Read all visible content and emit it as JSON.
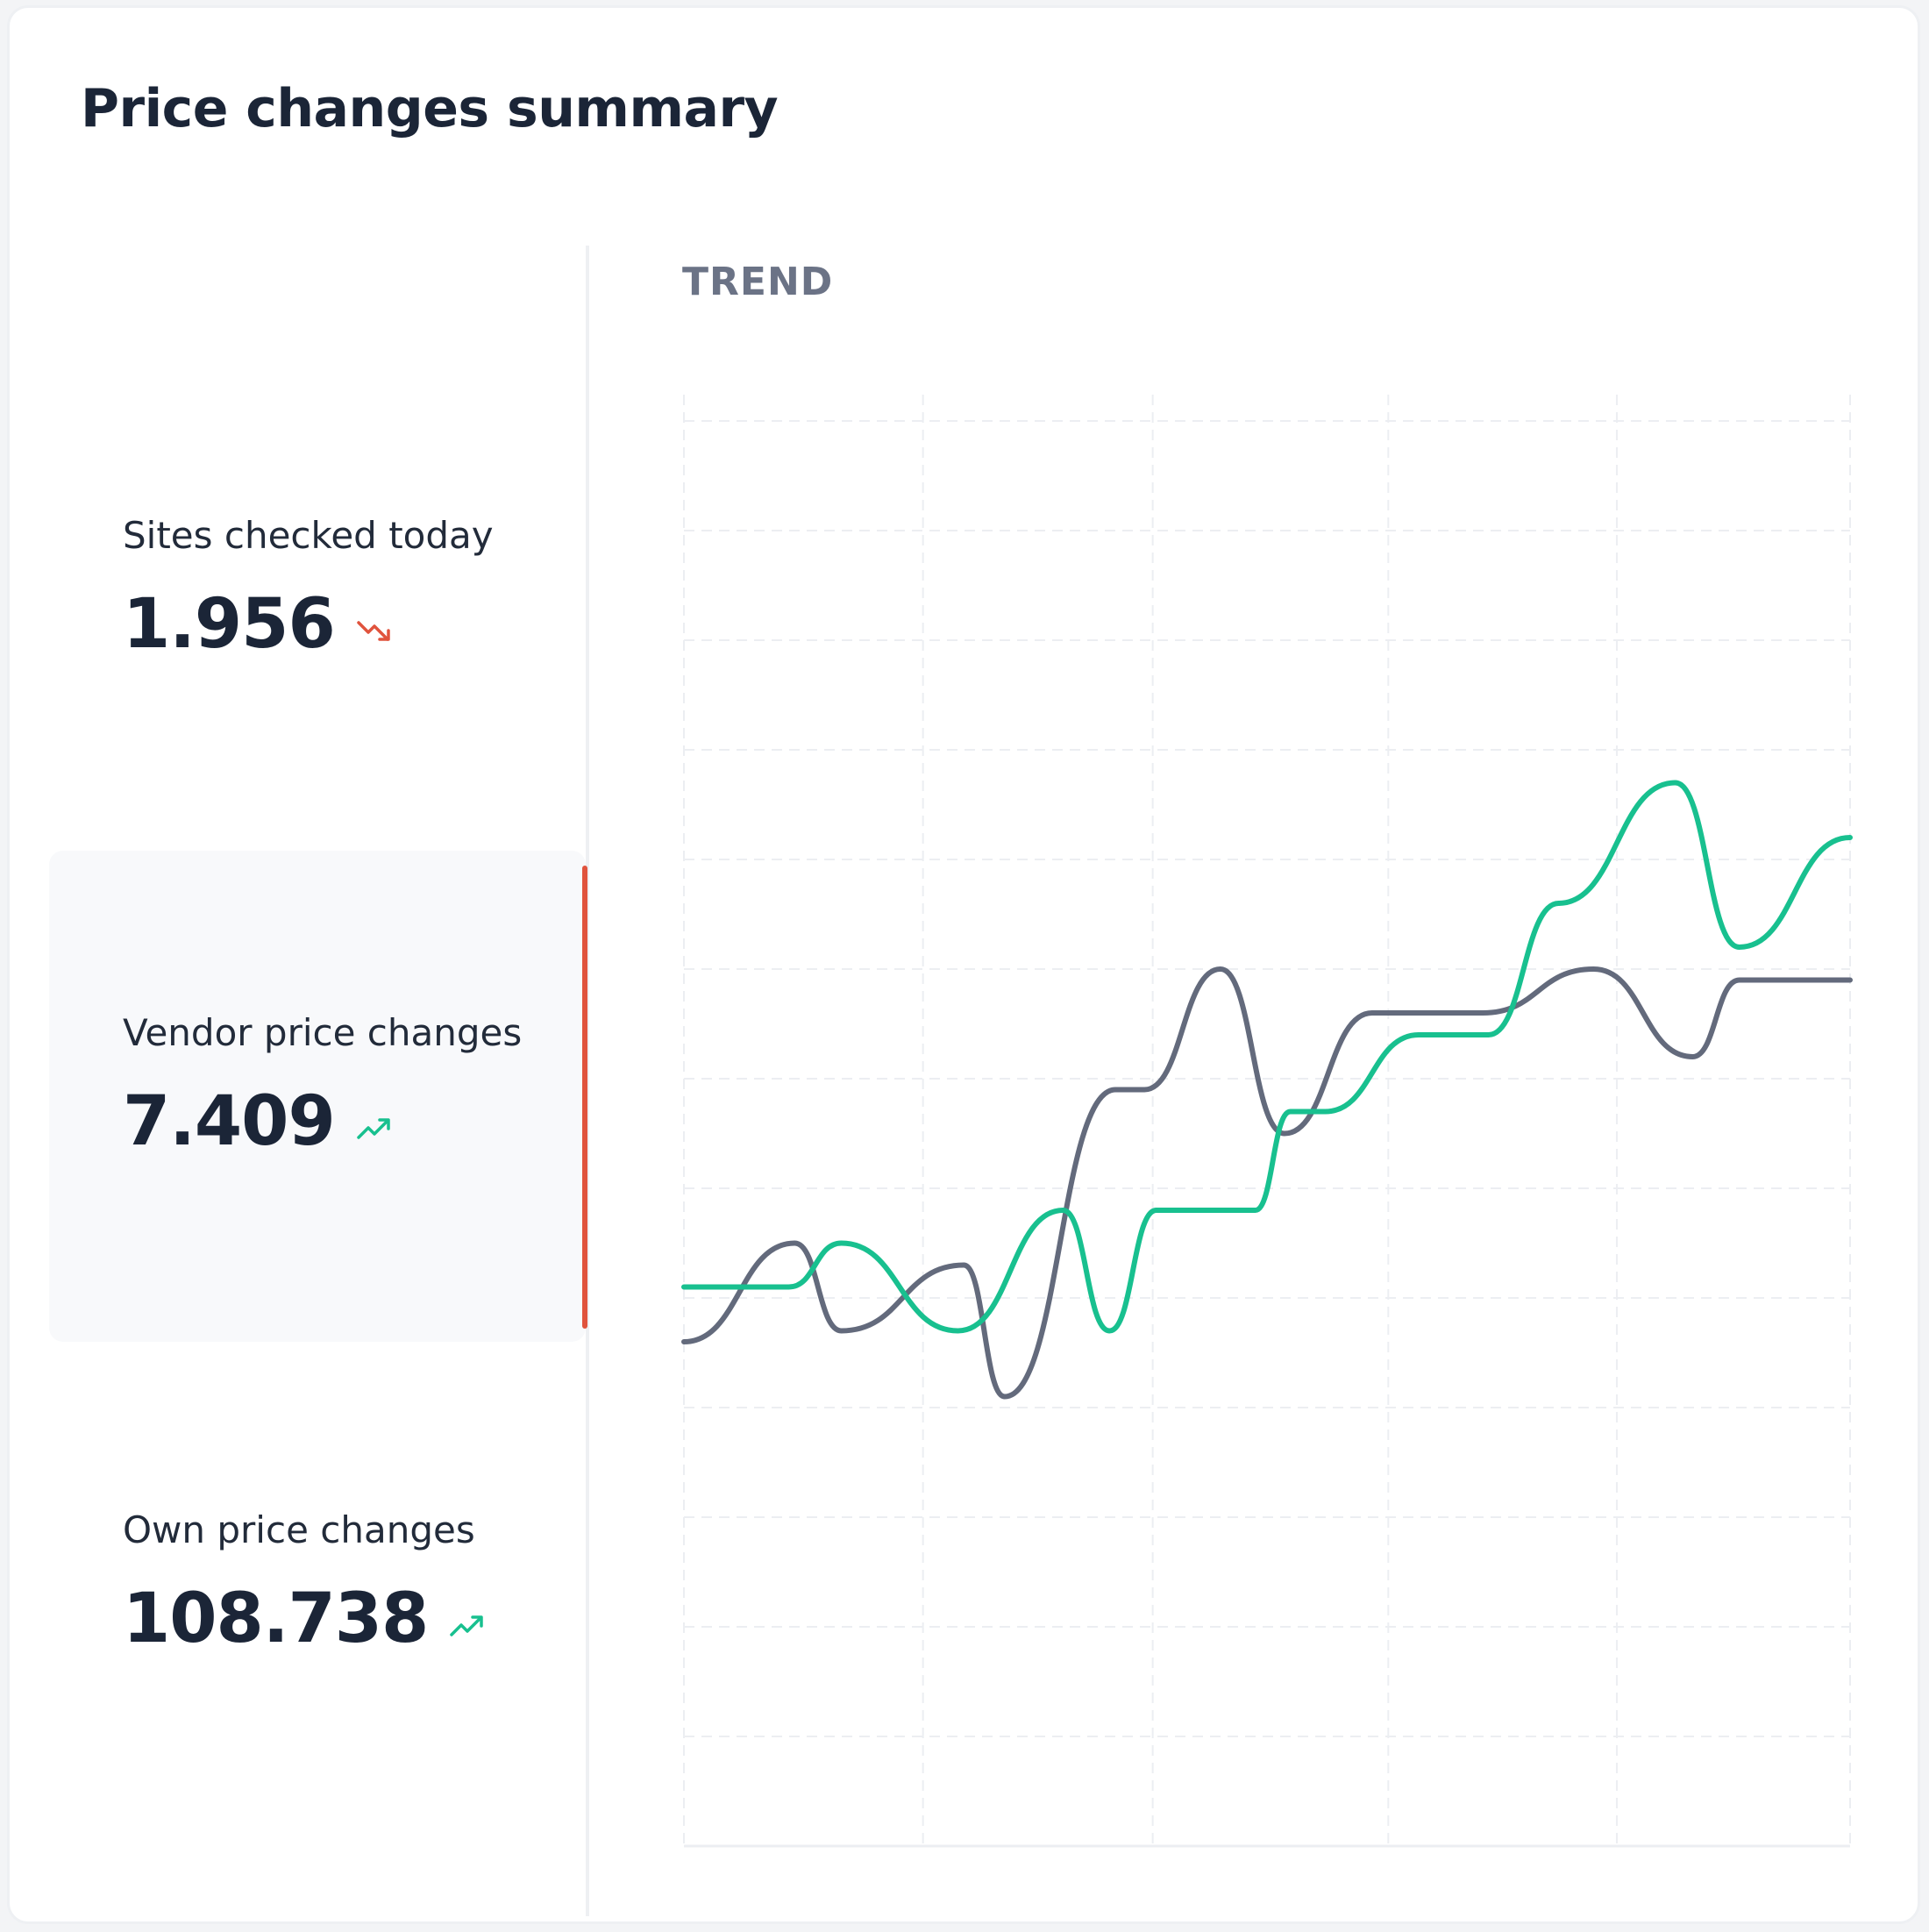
{
  "card": {
    "title": "Price changes summary"
  },
  "stats": [
    {
      "label": "Sites checked today",
      "value": "1.956",
      "trend": "down",
      "icon": "trend-down-icon",
      "color": "#e0533d"
    },
    {
      "label": "Vendor price changes",
      "value": "7.409",
      "trend": "up",
      "icon": "trend-up-icon",
      "color": "#18c08f",
      "active": true
    },
    {
      "label": "Own price changes",
      "value": "108.738",
      "trend": "up",
      "icon": "trend-up-icon",
      "color": "#18c08f"
    }
  ],
  "trend": {
    "label": "TREND"
  },
  "chart_data": {
    "type": "line",
    "ylim": [
      0,
      13
    ],
    "xlim": [
      0,
      20
    ],
    "grid": true,
    "series": [
      {
        "color": "#18c08f",
        "x": [
          0,
          1.8,
          2.7,
          4.7,
          6.5,
          7.3,
          8.1,
          9.8,
          10.4,
          11,
          12.6,
          13.8,
          15,
          17,
          18.1,
          20
        ],
        "values": [
          5.1,
          5.1,
          5.5,
          4.7,
          5.8,
          4.7,
          5.8,
          5.8,
          6.7,
          6.7,
          7.4,
          7.4,
          8.6,
          9.7,
          8.2,
          9.2
        ]
      },
      {
        "color": "#636a7c",
        "x": [
          0,
          1.9,
          2.7,
          4.8,
          5.5,
          7.4,
          7.9,
          9.2,
          10.3,
          11.8,
          13.7,
          15.6,
          17.3,
          18.1,
          20
        ],
        "values": [
          4.6,
          5.5,
          4.7,
          5.3,
          4.1,
          6.9,
          6.9,
          8,
          6.5,
          7.6,
          7.6,
          8,
          7.2,
          7.9,
          7.9
        ]
      }
    ]
  }
}
